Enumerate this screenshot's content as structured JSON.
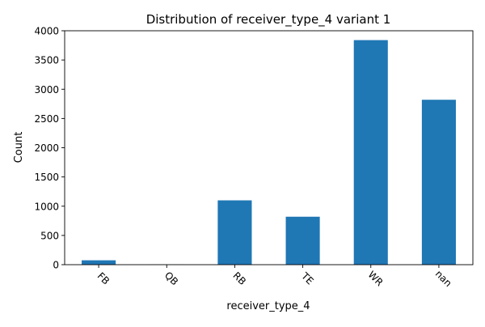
{
  "chart_data": {
    "type": "bar",
    "title": "Distribution of receiver_type_4 variant 1",
    "xlabel": "receiver_type_4",
    "ylabel": "Count",
    "categories": [
      "FB",
      "QB",
      "RB",
      "TE",
      "WR",
      "nan"
    ],
    "values": [
      75,
      3,
      1100,
      820,
      3840,
      2820
    ],
    "ylim": [
      0,
      4000
    ],
    "yticks": [
      0,
      500,
      1000,
      1500,
      2000,
      2500,
      3000,
      3500,
      4000
    ],
    "bar_color": "#1f77b4",
    "grid": false,
    "legend": "none"
  }
}
